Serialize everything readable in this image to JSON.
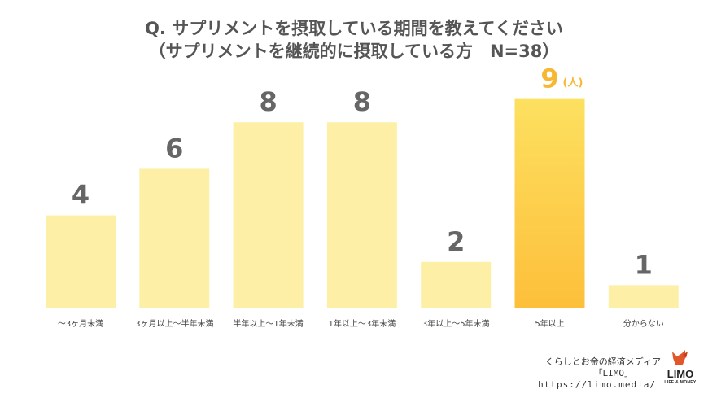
{
  "header": {
    "title_line1": "Q. サプリメントを摂取している期間を教えてください",
    "title_line2": "（サプリメントを継続的に摂取している方　N=38）"
  },
  "chart_data": {
    "type": "bar",
    "categories": [
      "～3ヶ月未満",
      "3ヶ月以上～半年未満",
      "半年以上～1年未満",
      "1年以上～3年未満",
      "3年以上～5年未満",
      "5年以上",
      "分からない"
    ],
    "values": [
      4,
      6,
      8,
      8,
      2,
      9,
      1
    ],
    "unit_label": "(人)",
    "highlight_index": 5,
    "ylim": [
      0,
      9
    ],
    "grid": false,
    "colors": {
      "bar": "#fdf0a6",
      "highlight_top": "#fde060",
      "highlight_bottom": "#fdbf3a",
      "value_label": "#666666",
      "highlight_label": "#f7b733",
      "category_label": "#444444"
    }
  },
  "credit": {
    "line1": "くらしとお金の経済メディア",
    "line2": "「LIMO」",
    "line3": "https://limo.media/"
  },
  "logo": {
    "name": "LIMO",
    "tagline": "LIFE & MONEY",
    "icon": "limo-bull-icon"
  }
}
